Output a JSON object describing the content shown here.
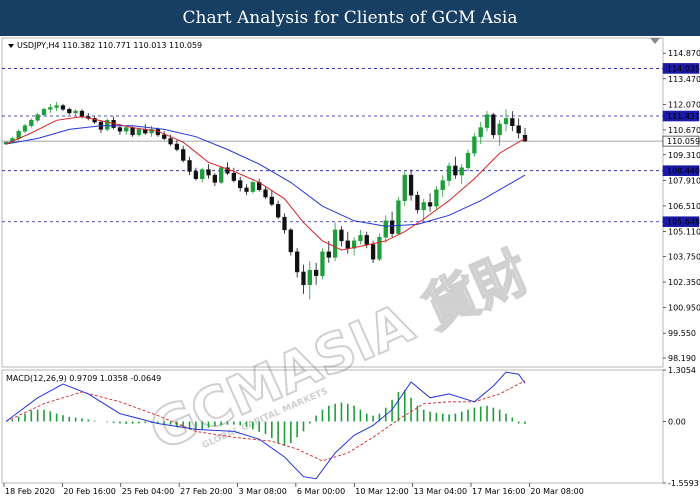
{
  "banner": {
    "title": "Chart Analysis for Clients of GCM Asia"
  },
  "chart_data": {
    "type": "candlestick",
    "symbol_info": "USDJPY,H4  110.382 110.771 110.013 110.059",
    "price_axis": {
      "ylim": [
        97.7,
        115.7
      ],
      "ticks": [
        "114.870",
        "113.470",
        "112.070",
        "110.670",
        "109.310",
        "107.910",
        "106.510",
        "105.110",
        "103.750",
        "102.350",
        "100.950",
        "99.550",
        "98.190"
      ]
    },
    "levels": [
      {
        "value": 114.035,
        "label": "114.035",
        "style": "dashed",
        "color": "#1a1aa6"
      },
      {
        "value": 111.431,
        "label": "111.431",
        "style": "dashed",
        "color": "#1a1aa6"
      },
      {
        "value": 110.059,
        "label": "110.059",
        "style": "solid",
        "color": "#8a8a8a"
      },
      {
        "value": 108.44,
        "label": "108.440",
        "style": "dashed",
        "color": "#1a1aa6"
      },
      {
        "value": 105.648,
        "label": "105.648",
        "style": "dashed",
        "color": "#1a1aa6"
      }
    ],
    "time_labels": [
      "18 Feb 2020",
      "20 Feb 16:00",
      "25 Feb 04:00",
      "27 Feb 20:00",
      "3 Mar 08:00",
      "6 Mar 00:00",
      "10 Mar 12:00",
      "13 Mar 04:00",
      "17 Mar 16:00",
      "20 Mar 08:00"
    ],
    "candles": [
      [
        109.9,
        110.05,
        109.85,
        110.0
      ],
      [
        110.0,
        110.3,
        109.95,
        110.2
      ],
      [
        110.2,
        110.7,
        110.1,
        110.6
      ],
      [
        110.6,
        111.0,
        110.5,
        110.9
      ],
      [
        110.9,
        111.3,
        110.8,
        111.2
      ],
      [
        111.2,
        111.6,
        111.1,
        111.5
      ],
      [
        111.5,
        111.9,
        111.4,
        111.8
      ],
      [
        111.8,
        112.1,
        111.6,
        111.9
      ],
      [
        111.9,
        112.2,
        111.7,
        112.0
      ],
      [
        112.0,
        112.1,
        111.7,
        111.8
      ],
      [
        111.8,
        111.9,
        111.5,
        111.6
      ],
      [
        111.6,
        111.8,
        111.4,
        111.7
      ],
      [
        111.7,
        111.8,
        111.3,
        111.4
      ],
      [
        111.4,
        111.6,
        111.2,
        111.3
      ],
      [
        111.3,
        111.4,
        111.0,
        111.1
      ],
      [
        111.1,
        111.2,
        110.5,
        110.7
      ],
      [
        110.7,
        111.3,
        110.6,
        111.2
      ],
      [
        111.2,
        111.4,
        110.7,
        110.8
      ],
      [
        110.8,
        111.0,
        110.4,
        110.6
      ],
      [
        110.6,
        110.9,
        110.4,
        110.8
      ],
      [
        110.8,
        110.9,
        110.3,
        110.4
      ],
      [
        110.4,
        110.8,
        110.3,
        110.7
      ],
      [
        110.7,
        111.0,
        110.4,
        110.5
      ],
      [
        110.5,
        110.9,
        110.3,
        110.7
      ],
      [
        110.7,
        110.8,
        110.3,
        110.4
      ],
      [
        110.4,
        110.6,
        110.1,
        110.2
      ],
      [
        110.2,
        110.4,
        109.8,
        109.9
      ],
      [
        109.9,
        110.1,
        109.5,
        109.6
      ],
      [
        109.6,
        109.8,
        108.9,
        109.0
      ],
      [
        109.0,
        109.2,
        108.2,
        108.4
      ],
      [
        108.4,
        108.6,
        107.9,
        108.0
      ],
      [
        108.0,
        108.6,
        107.8,
        108.5
      ],
      [
        108.5,
        108.8,
        108.0,
        108.2
      ],
      [
        108.2,
        108.3,
        107.6,
        107.8
      ],
      [
        107.8,
        108.7,
        107.7,
        108.6
      ],
      [
        108.6,
        108.9,
        108.2,
        108.3
      ],
      [
        108.3,
        108.6,
        107.8,
        107.9
      ],
      [
        107.9,
        108.1,
        107.3,
        107.5
      ],
      [
        107.5,
        107.7,
        107.1,
        107.3
      ],
      [
        107.3,
        107.9,
        107.2,
        107.8
      ],
      [
        107.8,
        108.0,
        107.3,
        107.4
      ],
      [
        107.4,
        107.6,
        106.9,
        107.0
      ],
      [
        107.0,
        107.4,
        106.5,
        106.6
      ],
      [
        106.6,
        106.8,
        105.8,
        105.9
      ],
      [
        105.9,
        106.1,
        105.0,
        105.2
      ],
      [
        105.2,
        105.3,
        103.8,
        104.0
      ],
      [
        104.0,
        104.2,
        102.6,
        102.9
      ],
      [
        102.9,
        103.3,
        101.7,
        102.2
      ],
      [
        102.2,
        103.5,
        101.4,
        103.0
      ],
      [
        103.0,
        103.4,
        102.2,
        102.7
      ],
      [
        102.7,
        104.2,
        102.5,
        104.0
      ],
      [
        104.0,
        104.6,
        103.4,
        103.7
      ],
      [
        103.7,
        105.6,
        103.5,
        105.2
      ],
      [
        105.2,
        105.4,
        104.3,
        104.6
      ],
      [
        104.6,
        105.1,
        103.9,
        104.2
      ],
      [
        104.2,
        104.8,
        103.8,
        104.6
      ],
      [
        104.6,
        105.2,
        104.4,
        104.9
      ],
      [
        104.9,
        105.1,
        104.2,
        104.4
      ],
      [
        104.4,
        104.6,
        103.4,
        103.6
      ],
      [
        103.6,
        105.0,
        103.5,
        104.8
      ],
      [
        104.8,
        106.0,
        104.5,
        105.7
      ],
      [
        105.7,
        106.2,
        104.8,
        105.0
      ],
      [
        105.0,
        107.0,
        104.9,
        106.8
      ],
      [
        106.8,
        108.4,
        106.5,
        108.2
      ],
      [
        108.2,
        108.5,
        106.8,
        107.1
      ],
      [
        107.1,
        107.3,
        106.1,
        106.3
      ],
      [
        106.3,
        106.9,
        105.6,
        106.7
      ],
      [
        106.7,
        107.2,
        106.2,
        106.5
      ],
      [
        106.5,
        107.6,
        106.3,
        107.4
      ],
      [
        107.4,
        108.2,
        107.0,
        107.9
      ],
      [
        107.9,
        108.9,
        107.6,
        108.7
      ],
      [
        108.7,
        109.2,
        108.0,
        108.2
      ],
      [
        108.2,
        108.8,
        107.7,
        108.6
      ],
      [
        108.6,
        109.6,
        108.4,
        109.4
      ],
      [
        109.4,
        110.5,
        109.2,
        110.3
      ],
      [
        110.3,
        111.1,
        109.9,
        110.8
      ],
      [
        110.8,
        111.7,
        110.6,
        111.5
      ],
      [
        111.5,
        111.6,
        110.2,
        110.4
      ],
      [
        110.4,
        111.2,
        109.8,
        111.0
      ],
      [
        111.0,
        111.8,
        110.6,
        111.3
      ],
      [
        111.3,
        111.7,
        110.6,
        110.9
      ],
      [
        110.9,
        111.3,
        110.2,
        110.5
      ],
      [
        110.38,
        110.77,
        110.01,
        110.06
      ]
    ],
    "ma_red": [
      [
        0,
        109.9
      ],
      [
        4,
        110.5
      ],
      [
        8,
        111.2
      ],
      [
        12,
        111.4
      ],
      [
        16,
        111.1
      ],
      [
        20,
        110.8
      ],
      [
        24,
        110.6
      ],
      [
        28,
        110.0
      ],
      [
        32,
        108.9
      ],
      [
        36,
        108.4
      ],
      [
        40,
        107.8
      ],
      [
        44,
        106.9
      ],
      [
        47,
        105.6
      ],
      [
        50,
        104.6
      ],
      [
        53,
        104.1
      ],
      [
        56,
        104.3
      ],
      [
        60,
        104.6
      ],
      [
        63,
        105.1
      ],
      [
        66,
        105.8
      ],
      [
        70,
        106.8
      ],
      [
        74,
        108.0
      ],
      [
        78,
        109.4
      ],
      [
        82,
        110.2
      ]
    ],
    "ma_blue": [
      [
        0,
        109.9
      ],
      [
        5,
        110.2
      ],
      [
        10,
        110.7
      ],
      [
        15,
        110.9
      ],
      [
        20,
        110.9
      ],
      [
        25,
        110.7
      ],
      [
        30,
        110.3
      ],
      [
        35,
        109.6
      ],
      [
        40,
        108.8
      ],
      [
        45,
        107.8
      ],
      [
        50,
        106.5
      ],
      [
        55,
        105.7
      ],
      [
        60,
        105.4
      ],
      [
        65,
        105.5
      ],
      [
        70,
        106.0
      ],
      [
        75,
        106.8
      ],
      [
        80,
        107.8
      ],
      [
        82,
        108.2
      ]
    ],
    "macd": {
      "label": "MACD(12,26,9) 0.9709 1.0358 -0.0649",
      "ticks": [
        "1.3054",
        "0.00",
        "-1.5593"
      ],
      "ylim": [
        -1.5593,
        1.3054
      ],
      "histogram": [
        0,
        0.05,
        0.12,
        0.2,
        0.28,
        0.3,
        0.3,
        0.26,
        0.2,
        0.16,
        0.12,
        0.1,
        0.08,
        0.05,
        0.02,
        0,
        -0.02,
        -0.04,
        -0.05,
        -0.06,
        -0.06,
        -0.05,
        -0.04,
        -0.04,
        -0.05,
        -0.06,
        -0.08,
        -0.12,
        -0.16,
        -0.2,
        -0.22,
        -0.2,
        -0.16,
        -0.12,
        -0.1,
        -0.08,
        -0.08,
        -0.1,
        -0.14,
        -0.2,
        -0.26,
        -0.32,
        -0.42,
        -0.55,
        -0.62,
        -0.55,
        -0.4,
        -0.25,
        -0.05,
        0.15,
        0.3,
        0.4,
        0.45,
        0.48,
        0.45,
        0.4,
        0.3,
        0.2,
        0.15,
        0.2,
        0.35,
        0.55,
        0.75,
        0.8,
        0.6,
        0.4,
        0.3,
        0.25,
        0.22,
        0.2,
        0.18,
        0.2,
        0.25,
        0.3,
        0.35,
        0.38,
        0.4,
        0.35,
        0.3,
        0.2,
        0.1,
        -0.05,
        -0.06
      ],
      "signal": [
        [
          0,
          0
        ],
        [
          6,
          0.45
        ],
        [
          12,
          0.75
        ],
        [
          18,
          0.5
        ],
        [
          24,
          0.15
        ],
        [
          30,
          -0.25
        ],
        [
          36,
          -0.4
        ],
        [
          42,
          -0.5
        ],
        [
          46,
          -0.7
        ],
        [
          50,
          -1.0
        ],
        [
          54,
          -0.8
        ],
        [
          58,
          -0.4
        ],
        [
          62,
          0.05
        ],
        [
          66,
          0.45
        ],
        [
          70,
          0.5
        ],
        [
          74,
          0.5
        ],
        [
          78,
          0.7
        ],
        [
          82,
          1.03
        ]
      ],
      "macd_line": [
        [
          0,
          0
        ],
        [
          5,
          0.6
        ],
        [
          9,
          0.95
        ],
        [
          13,
          0.7
        ],
        [
          18,
          0.2
        ],
        [
          24,
          -0.05
        ],
        [
          30,
          -0.2
        ],
        [
          36,
          -0.25
        ],
        [
          40,
          -0.45
        ],
        [
          44,
          -0.9
        ],
        [
          47,
          -1.4
        ],
        [
          49,
          -1.45
        ],
        [
          52,
          -0.8
        ],
        [
          55,
          -0.35
        ],
        [
          58,
          -0.1
        ],
        [
          61,
          0.3
        ],
        [
          64,
          1.0
        ],
        [
          67,
          0.6
        ],
        [
          70,
          0.7
        ],
        [
          74,
          0.5
        ],
        [
          77,
          0.9
        ],
        [
          79,
          1.25
        ],
        [
          81,
          1.2
        ],
        [
          82,
          0.97
        ]
      ]
    }
  },
  "watermark": {
    "big": "GCMASIA 貨財",
    "small": "GLOBAL CAPITAL MARKETS",
    "color": "#9a9a9a"
  },
  "colors": {
    "up": "#1e9e3a",
    "down": "#111111",
    "ma_red": "#d8242a",
    "ma_blue": "#2436d8",
    "level_box": "#1a1aa6",
    "price_box": "#ffffff"
  }
}
